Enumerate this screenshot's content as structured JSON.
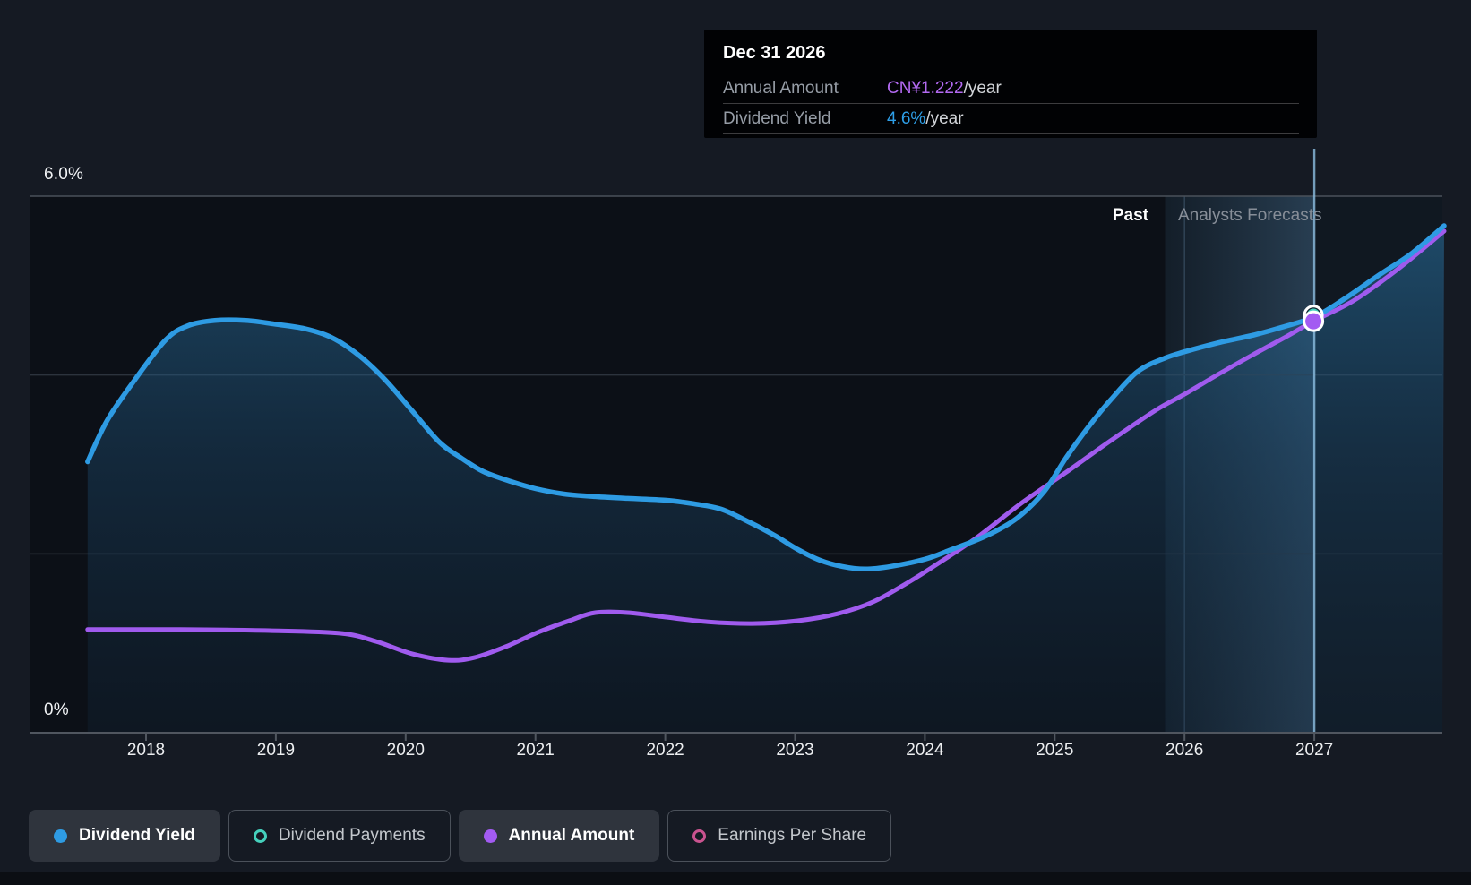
{
  "tooltip": {
    "title": "Dec 31 2026",
    "rows": [
      {
        "label": "Annual Amount",
        "value": "CN¥1.222",
        "suffix": "/year",
        "color": "#b36af2"
      },
      {
        "label": "Dividend Yield",
        "value": "4.6%",
        "suffix": "/year",
        "color": "#2e9fe8"
      }
    ]
  },
  "axis": {
    "y_top_label": "6.0%",
    "y_bottom_label": "0%",
    "x_labels": [
      "2018",
      "2019",
      "2020",
      "2021",
      "2022",
      "2023",
      "2024",
      "2025",
      "2026",
      "2027"
    ]
  },
  "annotations": {
    "past_label": "Past",
    "forecast_label": "Analysts Forecasts"
  },
  "legend": [
    {
      "label": "Dividend Yield",
      "marker": "filled",
      "color": "#2e9be3",
      "active": true
    },
    {
      "label": "Dividend Payments",
      "marker": "ring",
      "color": "#45d0bc",
      "active": false
    },
    {
      "label": "Annual Amount",
      "marker": "filled",
      "color": "#a35bf2",
      "active": true
    },
    {
      "label": "Earnings Per Share",
      "marker": "ring",
      "color": "#c9538f",
      "active": false
    }
  ],
  "chart_data": {
    "type": "area",
    "title": "Dividend yield history and analyst forecasts",
    "x_range": [
      2017.55,
      2028.0
    ],
    "y_axis": {
      "min": 0,
      "max": 6,
      "unit": "%",
      "gridlines_pct": [
        2,
        4,
        6
      ],
      "grid": true
    },
    "amount_axis": {
      "unit": "CN¥/year",
      "yield_equivalent_per_unit": 3.77
    },
    "forecast_boundary_year": 2026.0,
    "forecast_band_start_year": 2025.85,
    "hover_year": 2027.0,
    "legend_position": "bottom",
    "series": [
      {
        "name": "Dividend Yield",
        "color": "#2e9be3",
        "unit": "%",
        "points": [
          [
            2017.55,
            3.03
          ],
          [
            2017.7,
            3.49
          ],
          [
            2017.91,
            3.94
          ],
          [
            2018.15,
            4.39
          ],
          [
            2018.32,
            4.55
          ],
          [
            2018.53,
            4.61
          ],
          [
            2018.77,
            4.61
          ],
          [
            2018.99,
            4.57
          ],
          [
            2019.22,
            4.52
          ],
          [
            2019.43,
            4.42
          ],
          [
            2019.64,
            4.22
          ],
          [
            2019.84,
            3.95
          ],
          [
            2020.05,
            3.6
          ],
          [
            2020.26,
            3.25
          ],
          [
            2020.43,
            3.07
          ],
          [
            2020.6,
            2.92
          ],
          [
            2020.81,
            2.81
          ],
          [
            2021.0,
            2.73
          ],
          [
            2021.22,
            2.67
          ],
          [
            2021.46,
            2.64
          ],
          [
            2021.71,
            2.62
          ],
          [
            2022.0,
            2.6
          ],
          [
            2022.22,
            2.56
          ],
          [
            2022.43,
            2.5
          ],
          [
            2022.64,
            2.36
          ],
          [
            2022.85,
            2.2
          ],
          [
            2023.02,
            2.05
          ],
          [
            2023.19,
            1.93
          ],
          [
            2023.36,
            1.86
          ],
          [
            2023.54,
            1.83
          ],
          [
            2023.74,
            1.86
          ],
          [
            2024.0,
            1.94
          ],
          [
            2024.19,
            2.04
          ],
          [
            2024.47,
            2.2
          ],
          [
            2024.71,
            2.4
          ],
          [
            2024.92,
            2.7
          ],
          [
            2025.09,
            3.08
          ],
          [
            2025.26,
            3.42
          ],
          [
            2025.43,
            3.72
          ],
          [
            2025.64,
            4.04
          ],
          [
            2025.85,
            4.19
          ],
          [
            2026.0,
            4.26
          ],
          [
            2026.26,
            4.36
          ],
          [
            2026.54,
            4.45
          ],
          [
            2026.74,
            4.53
          ],
          [
            2027.0,
            4.65
          ],
          [
            2027.23,
            4.85
          ],
          [
            2027.5,
            5.12
          ],
          [
            2027.75,
            5.36
          ],
          [
            2028.0,
            5.67
          ]
        ]
      },
      {
        "name": "Annual Amount",
        "color": "#a05bee",
        "unit": "CN¥/year",
        "points": [
          [
            2017.55,
            0.306
          ],
          [
            2018.26,
            0.306
          ],
          [
            2018.95,
            0.303
          ],
          [
            2019.5,
            0.295
          ],
          [
            2019.77,
            0.271
          ],
          [
            2020.05,
            0.234
          ],
          [
            2020.33,
            0.215
          ],
          [
            2020.53,
            0.223
          ],
          [
            2020.77,
            0.255
          ],
          [
            2021.02,
            0.298
          ],
          [
            2021.26,
            0.332
          ],
          [
            2021.46,
            0.356
          ],
          [
            2021.71,
            0.356
          ],
          [
            2022.0,
            0.343
          ],
          [
            2022.33,
            0.329
          ],
          [
            2022.67,
            0.324
          ],
          [
            2023.02,
            0.332
          ],
          [
            2023.33,
            0.353
          ],
          [
            2023.6,
            0.388
          ],
          [
            2023.85,
            0.441
          ],
          [
            2024.09,
            0.499
          ],
          [
            2024.4,
            0.579
          ],
          [
            2024.74,
            0.68
          ],
          [
            2025.09,
            0.773
          ],
          [
            2025.43,
            0.866
          ],
          [
            2025.78,
            0.957
          ],
          [
            2026.0,
            1.004
          ],
          [
            2026.26,
            1.063
          ],
          [
            2026.54,
            1.124
          ],
          [
            2026.78,
            1.174
          ],
          [
            2027.0,
            1.222
          ],
          [
            2027.3,
            1.281
          ],
          [
            2027.64,
            1.374
          ],
          [
            2028.0,
            1.488
          ]
        ]
      }
    ],
    "marker": {
      "year": 2027.0,
      "date_label": "Dec 31 2026",
      "yield_pct": 4.6,
      "amount_cny": 1.222
    }
  }
}
